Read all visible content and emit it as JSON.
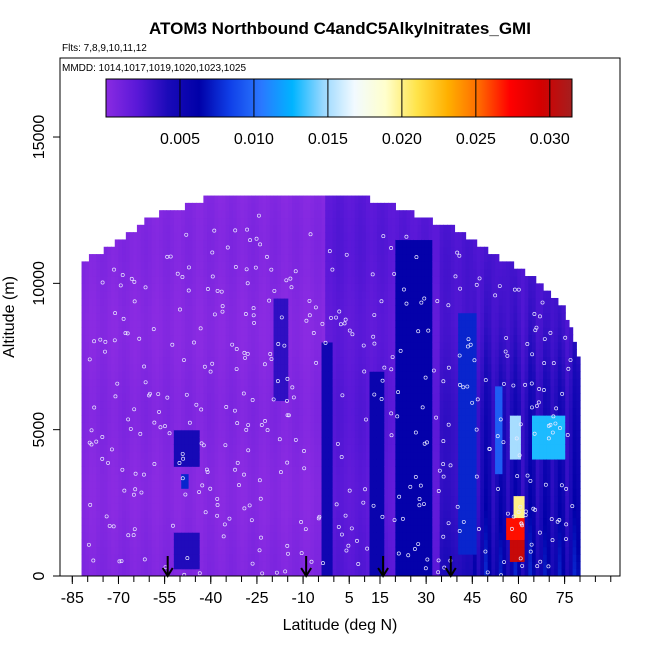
{
  "chart_data": {
    "type": "heatmap",
    "title": "ATOM3 Northbound C4andC5AlkyInitrates_GMI",
    "subtitle_flights": "Flts: 7,8,9,10,11,12",
    "subtitle_dates": "MMDD: 1014,1017,1019,1020,1023,1025",
    "xlabel": "Latitude (deg N)",
    "ylabel": "Altitude (m)",
    "x_ticks": [
      "-85",
      "-70",
      "-55",
      "-40",
      "-25",
      "-10",
      "5",
      "15",
      "30",
      "45",
      "60",
      "75"
    ],
    "x_tick_values": [
      -85,
      -70,
      -55,
      -40,
      -25,
      -10,
      5,
      15,
      30,
      45,
      60,
      75
    ],
    "y_ticks": [
      "0",
      "5000",
      "10000",
      "15000"
    ],
    "y_tick_values": [
      0,
      5000,
      10000,
      15000
    ],
    "xlim": [
      -89,
      93
    ],
    "ylim": [
      0,
      17700
    ],
    "colorbar": {
      "ticks": [
        "0.005",
        "0.010",
        "0.015",
        "0.020",
        "0.025",
        "0.030"
      ],
      "tick_values": [
        0.005,
        0.01,
        0.015,
        0.02,
        0.025,
        0.03
      ],
      "range": [
        0.0,
        0.0315
      ],
      "colors": [
        "#8a2be2",
        "#5a18d8",
        "#1a0ab8",
        "#0000a8",
        "#1040e8",
        "#2a78ff",
        "#00b4ff",
        "#9ad8ff",
        "#f2faff",
        "#ffffcc",
        "#ffe44a",
        "#ffb000",
        "#ff6a00",
        "#ff0000",
        "#d40000",
        "#a51e1e"
      ]
    },
    "profile_arrows_lat": [
      -54,
      -9,
      16,
      38
    ],
    "coverage": {
      "lat": [
        -82,
        -75,
        -65,
        -60,
        -55,
        -50,
        -45,
        -40,
        -35,
        -25,
        -15,
        -10,
        -5,
        0,
        10,
        20,
        30,
        40,
        50,
        60,
        68,
        75,
        80
      ],
      "top_alt": [
        10600,
        11000,
        11700,
        12100,
        12300,
        12400,
        12700,
        12800,
        12800,
        12900,
        12900,
        12900,
        12900,
        12900,
        12800,
        12500,
        12100,
        11700,
        11000,
        10400,
        9800,
        9000,
        7200
      ]
    },
    "bands": [
      {
        "lat_range": [
          -52,
          -44
        ],
        "alt_range": [
          3800,
          5000
        ],
        "value": 0.0045
      },
      {
        "lat_range": [
          -52,
          -44
        ],
        "alt_range": [
          300,
          1500
        ],
        "value": 0.004
      },
      {
        "lat_range": [
          -50,
          -47
        ],
        "alt_range": [
          2900,
          3600
        ],
        "value": 0.0075
      },
      {
        "lat_range": [
          -20,
          -15
        ],
        "alt_range": [
          6000,
          9500
        ],
        "value": 0.0035
      },
      {
        "lat_range": [
          -4,
          0
        ],
        "alt_range": [
          0,
          8000
        ],
        "value": 0.005
      },
      {
        "lat_range": [
          12,
          16
        ],
        "alt_range": [
          0,
          7000
        ],
        "value": 0.0055
      },
      {
        "lat_range": [
          20,
          32
        ],
        "alt_range": [
          0,
          11500
        ],
        "value": 0.006
      },
      {
        "lat_range": [
          40,
          47
        ],
        "alt_range": [
          800,
          9000
        ],
        "value": 0.0075
      },
      {
        "lat_range": [
          52,
          55
        ],
        "alt_range": [
          3500,
          6500
        ],
        "value": 0.0095
      },
      {
        "lat_range": [
          57,
          61
        ],
        "alt_range": [
          4000,
          5500
        ],
        "value": 0.015
      },
      {
        "lat_range": [
          64,
          75
        ],
        "alt_range": [
          4000,
          5500
        ],
        "value": 0.013
      },
      {
        "lat_range": [
          58,
          62
        ],
        "alt_range": [
          2000,
          2800
        ],
        "value": 0.02
      },
      {
        "lat_range": [
          56,
          62
        ],
        "alt_range": [
          1200,
          2000
        ],
        "value": 0.027
      },
      {
        "lat_range": [
          57,
          62
        ],
        "alt_range": [
          500,
          1200
        ],
        "value": 0.03
      }
    ]
  }
}
